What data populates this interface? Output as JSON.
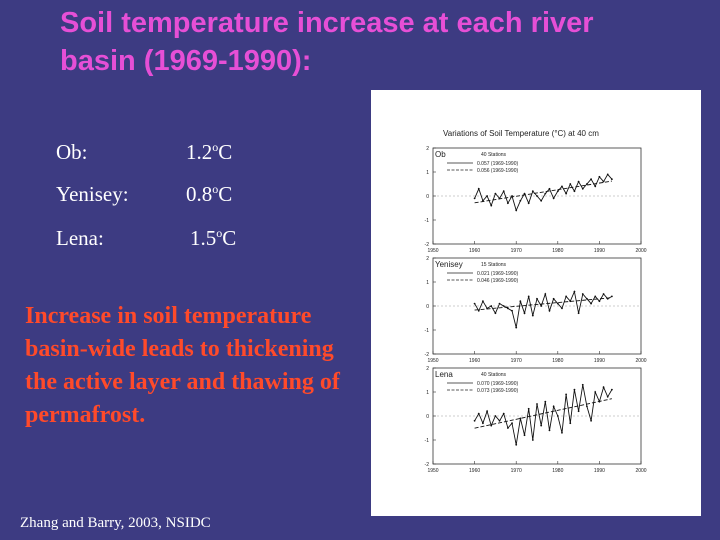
{
  "slide": {
    "title": "Soil temperature increase at each river basin (1969-1990):",
    "basins": [
      {
        "name": "Ob:",
        "value": "1.2",
        "unit_sup": "o",
        "unit": "C"
      },
      {
        "name": "Yenisey:",
        "value": "0.8",
        "unit_sup": "o",
        "unit": "C"
      },
      {
        "name": "Lena:",
        "value": "1.5",
        "unit_sup": "o",
        "unit": "C"
      }
    ],
    "conclusion": "Increase in soil temperature basin-wide leads to thickening the active layer and thawing of permafrost.",
    "citation": "Zhang and Barry, 2003, NSIDC"
  },
  "figure": {
    "title": "Variations of Soil Temperature (°C) at 40 cm",
    "panels": [
      {
        "name": "Ob",
        "sub": "40 Stations",
        "legend": [
          "0.057 (1969-1990)",
          "0.056 (1969-1990)"
        ]
      },
      {
        "name": "Yenisey",
        "sub": "15 Stations",
        "legend": [
          "0.021 (1969-1990)",
          "0.046 (1969-1990)"
        ]
      },
      {
        "name": "Lena",
        "sub": "40 Stations",
        "legend": [
          "0.070 (1969-1990)",
          "0.073 (1969-1990)"
        ]
      }
    ],
    "x_ticks": [
      "1950",
      "1960",
      "1970",
      "1980",
      "1990",
      "2000"
    ],
    "y_ticks": [
      "2",
      "1",
      "0",
      "-1",
      "-2"
    ]
  },
  "chart_data": [
    {
      "type": "line",
      "title": "Ob",
      "x": [
        1960,
        1961,
        1962,
        1963,
        1964,
        1965,
        1966,
        1967,
        1968,
        1969,
        1970,
        1971,
        1972,
        1973,
        1974,
        1975,
        1976,
        1977,
        1978,
        1979,
        1980,
        1981,
        1982,
        1983,
        1984,
        1985,
        1986,
        1987,
        1988,
        1989,
        1990,
        1991,
        1992,
        1993
      ],
      "series": [
        {
          "values": [
            -0.1,
            0.3,
            -0.2,
            0.0,
            -0.4,
            0.1,
            -0.1,
            0.2,
            -0.3,
            0.0,
            -0.6,
            -0.2,
            0.1,
            -0.3,
            0.2,
            0.0,
            -0.2,
            0.1,
            0.3,
            -0.1,
            0.2,
            0.4,
            0.1,
            0.5,
            0.2,
            0.6,
            0.3,
            0.5,
            0.7,
            0.4,
            0.8,
            0.6,
            0.9,
            0.7
          ]
        }
      ],
      "ylim": [
        -2,
        2
      ]
    },
    {
      "type": "line",
      "title": "Yenisey",
      "x": [
        1960,
        1961,
        1962,
        1963,
        1964,
        1965,
        1966,
        1967,
        1968,
        1969,
        1970,
        1971,
        1972,
        1973,
        1974,
        1975,
        1976,
        1977,
        1978,
        1979,
        1980,
        1981,
        1982,
        1983,
        1984,
        1985,
        1986,
        1987,
        1988,
        1989,
        1990,
        1991,
        1992,
        1993
      ],
      "series": [
        {
          "values": [
            0.1,
            -0.2,
            0.2,
            -0.1,
            0.0,
            -0.3,
            0.1,
            0.0,
            -0.1,
            -0.2,
            -0.9,
            0.2,
            -0.3,
            0.4,
            -0.4,
            0.3,
            0.0,
            0.5,
            -0.2,
            0.3,
            0.1,
            -0.1,
            0.4,
            0.2,
            0.6,
            -0.3,
            0.5,
            0.3,
            0.1,
            0.4,
            0.2,
            0.5,
            0.3,
            0.4
          ]
        }
      ],
      "ylim": [
        -2,
        2
      ]
    },
    {
      "type": "line",
      "title": "Lena",
      "x": [
        1960,
        1961,
        1962,
        1963,
        1964,
        1965,
        1966,
        1967,
        1968,
        1969,
        1970,
        1971,
        1972,
        1973,
        1974,
        1975,
        1976,
        1977,
        1978,
        1979,
        1980,
        1981,
        1982,
        1983,
        1984,
        1985,
        1986,
        1987,
        1988,
        1989,
        1990,
        1991,
        1992,
        1993
      ],
      "series": [
        {
          "values": [
            -0.2,
            0.1,
            -0.3,
            0.2,
            -0.4,
            0.0,
            -0.2,
            0.1,
            -0.5,
            -0.3,
            -1.2,
            -0.1,
            -0.8,
            0.3,
            -1.0,
            0.5,
            -0.4,
            0.6,
            -0.6,
            0.4,
            0.0,
            -0.7,
            0.9,
            -0.3,
            1.1,
            0.2,
            1.3,
            0.4,
            -0.2,
            1.0,
            0.6,
            1.2,
            0.8,
            1.1
          ]
        }
      ],
      "ylim": [
        -2,
        2
      ]
    }
  ]
}
